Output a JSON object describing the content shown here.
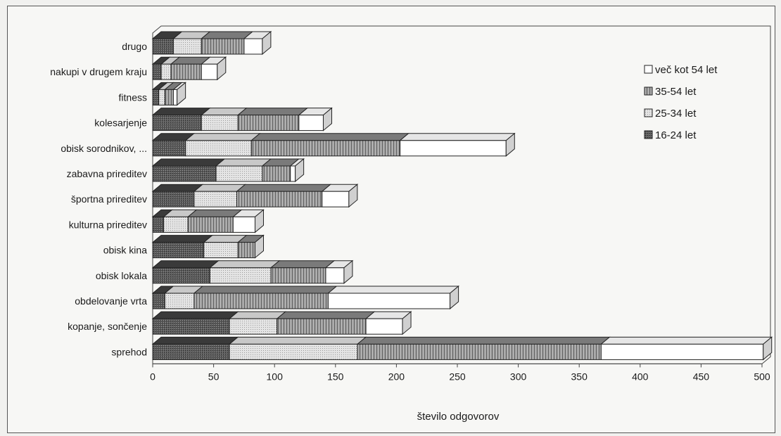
{
  "chart_data": {
    "type": "bar",
    "orientation": "horizontal",
    "stacked": true,
    "three_d": true,
    "title": "",
    "xlabel": "število odgovorov",
    "ylabel": "",
    "xlim": [
      0,
      500
    ],
    "xticks": [
      0,
      50,
      100,
      150,
      200,
      250,
      300,
      350,
      400,
      450,
      500
    ],
    "grid": false,
    "legend_position": "right",
    "categories": [
      "drugo",
      "nakupi v drugem kraju",
      "fitness",
      "kolesarjenje",
      "obisk sorodnikov, ...",
      "zabavna prireditev",
      "športna prireditev",
      "kulturna prireditev",
      "obisk kina",
      "obisk lokala",
      "obdelovanje vrta",
      "kopanje, sončenje",
      "sprehod"
    ],
    "series": [
      {
        "name": "16-24 let",
        "color": "#4a4a4a",
        "values": [
          17,
          7,
          5,
          40,
          27,
          52,
          34,
          9,
          42,
          47,
          10,
          63,
          63
        ]
      },
      {
        "name": "25-34 let",
        "color": "#d9d9d9",
        "values": [
          23,
          8,
          5,
          30,
          54,
          38,
          35,
          20,
          28,
          50,
          24,
          39,
          105
        ]
      },
      {
        "name": "35-54 let",
        "color": "#8c8c8c",
        "values": [
          35,
          25,
          7,
          50,
          122,
          23,
          70,
          37,
          14,
          45,
          110,
          73,
          200
        ]
      },
      {
        "name": "več kot 54 let",
        "color": "#ffffff",
        "values": [
          15,
          13,
          3,
          20,
          87,
          4,
          22,
          18,
          0,
          15,
          100,
          30,
          133
        ]
      }
    ]
  }
}
